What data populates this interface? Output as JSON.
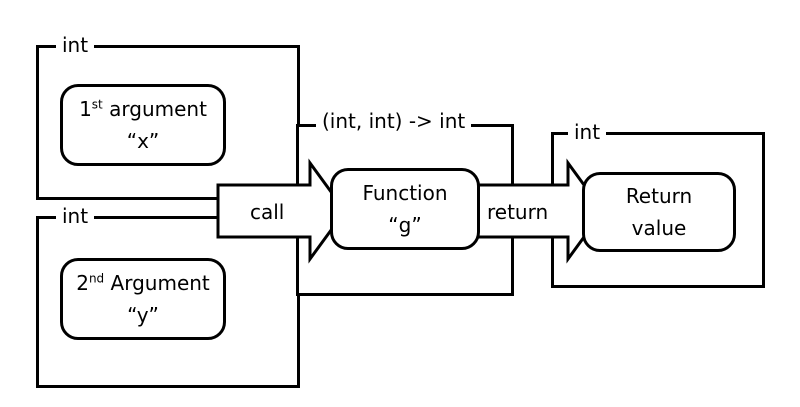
{
  "diagram": {
    "arg1_frame": {
      "type_label": "int"
    },
    "arg1": {
      "ordinal": "1",
      "ordinal_suffix": "st",
      "word": "argument",
      "name": "“x”"
    },
    "arg2_frame": {
      "type_label": "int"
    },
    "arg2": {
      "ordinal": "2",
      "ordinal_suffix": "nd",
      "word": "Argument",
      "name": "“y”"
    },
    "function_frame": {
      "type_label": "(int, int) -> int"
    },
    "function": {
      "line1": "Function",
      "line2": "“g”"
    },
    "return_frame": {
      "type_label": "int"
    },
    "return_value": {
      "line1": "Return",
      "line2": "value"
    },
    "call_arrow": {
      "label": "call"
    },
    "return_arrow": {
      "label": "return"
    }
  }
}
